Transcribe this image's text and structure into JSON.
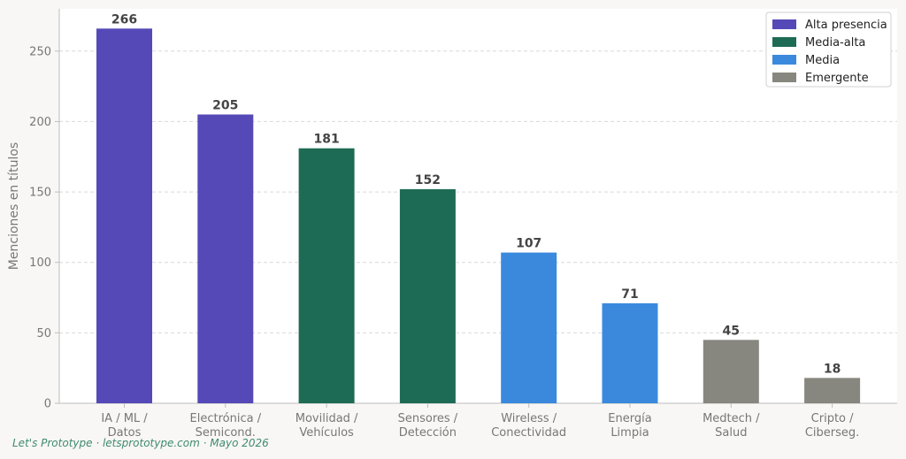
{
  "chart_data": {
    "type": "bar",
    "title": "",
    "xlabel": "",
    "ylabel": "Menciones en títulos",
    "ylim": [
      0,
      280
    ],
    "yticks": [
      0,
      50,
      100,
      150,
      200,
      250
    ],
    "grid": "horizontal-dashed",
    "legend_position": "top-right",
    "categories": [
      [
        "IA / ML /",
        "Datos"
      ],
      [
        "Electrónica /",
        "Semicond."
      ],
      [
        "Movilidad /",
        "Vehículos"
      ],
      [
        "Sensores /",
        "Detección"
      ],
      [
        "Wireless /",
        "Conectividad"
      ],
      [
        "Energía",
        "Limpia"
      ],
      [
        "Medtech /",
        "Salud"
      ],
      [
        "Cripto /",
        "Ciberseg."
      ]
    ],
    "values": [
      266,
      205,
      181,
      152,
      107,
      71,
      45,
      18
    ],
    "groups": [
      "Alta presencia",
      "Alta presencia",
      "Media-alta",
      "Media-alta",
      "Media",
      "Media",
      "Emergente",
      "Emergente"
    ],
    "legend": [
      {
        "name": "Alta presencia",
        "color": "#5549b7"
      },
      {
        "name": "Media-alta",
        "color": "#1e6b55"
      },
      {
        "name": "Media",
        "color": "#3a89dd"
      },
      {
        "name": "Emergente",
        "color": "#88877f"
      }
    ]
  },
  "footer": {
    "credit": "Let's Prototype · letsprototype.com · Mayo 2026"
  },
  "colors": {
    "background": "#f8f7f5",
    "plot_background": "#ffffff",
    "grid": "#d9d9d9",
    "axis": "#bdbdbd",
    "text": "#777777",
    "value_label": "#444444",
    "credit": "#3f8a6f"
  }
}
